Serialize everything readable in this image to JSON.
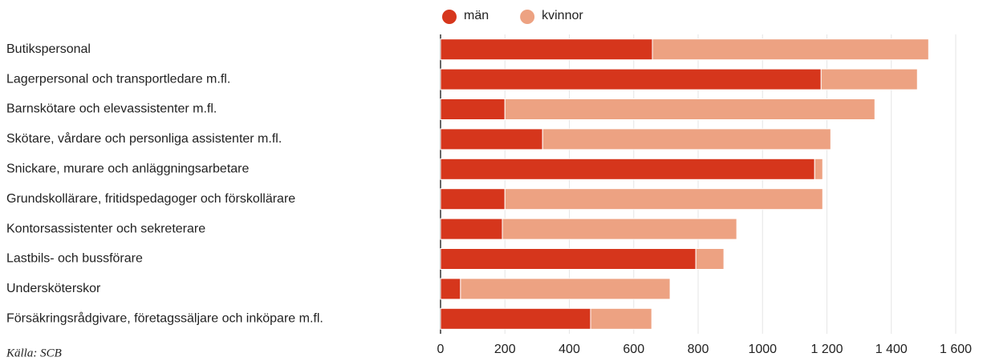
{
  "chart_data": {
    "type": "stacked-bar-horizontal",
    "categories": [
      "Butikspersonal",
      "Lagerpersonal och transportledare m.fl.",
      "Barnskötare och elevassistenter m.fl.",
      "Skötare, vårdare och personliga assistenter m.fl.",
      "Snickare, murare och anläggningsarbetare",
      "Grundskollärare, fritidspedagoger och förskollärare",
      "Kontorsassistenter och sekreterare",
      "Lastbils- och bussförare",
      "Undersköterskor",
      "Försäkringsrådgivare, företagssäljare och inköpare m.fl."
    ],
    "series": [
      {
        "name": "män",
        "color": "#d6361c",
        "values": [
          658,
          1182,
          200,
          317,
          1162,
          200,
          192,
          793,
          62,
          466
        ]
      },
      {
        "name": "kvinnor",
        "color": "#eda282",
        "values": [
          858,
          299,
          1149,
          895,
          25,
          987,
          728,
          87,
          651,
          190
        ]
      }
    ],
    "xlim": [
      0,
      1600
    ],
    "xticks": [
      0,
      200,
      400,
      600,
      800,
      1000,
      {
        "value": 1200,
        "label": "1 200"
      },
      {
        "value": 1400,
        "label": "1 400"
      },
      {
        "value": 1600,
        "label": "1 600"
      }
    ],
    "grid": true,
    "legend": "top",
    "source": "Källa: SCB"
  }
}
